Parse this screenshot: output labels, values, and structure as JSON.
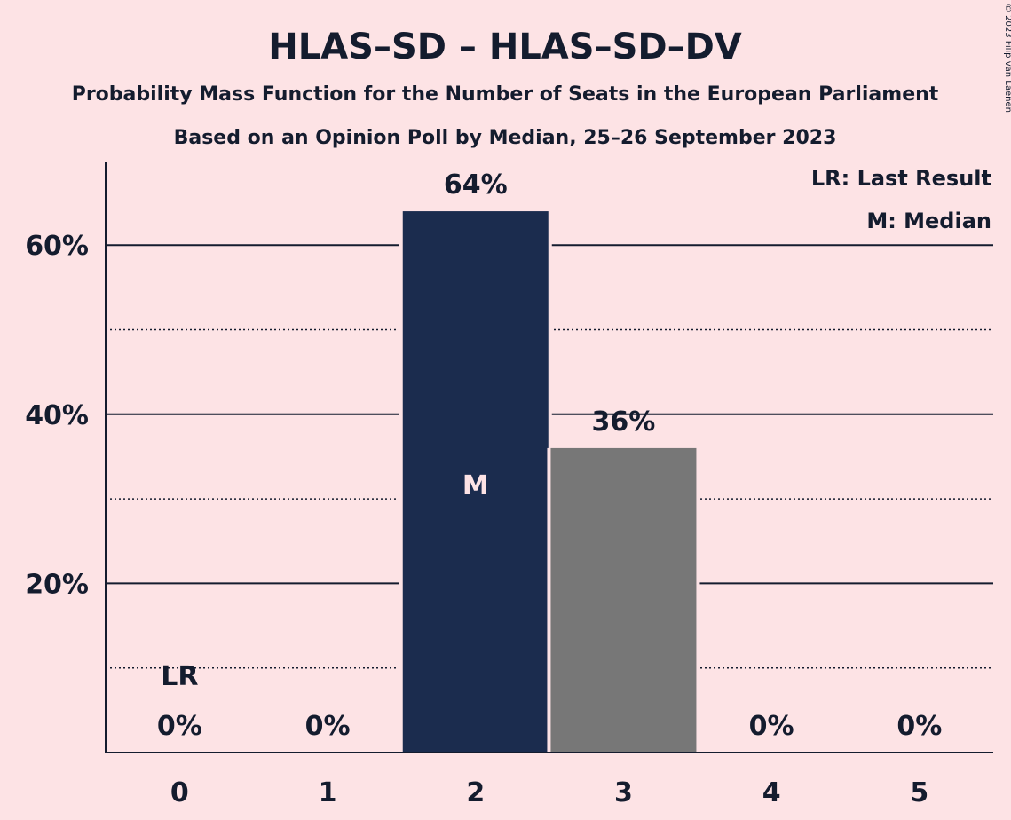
{
  "header": {
    "title": "HLAS–SD – HLAS–SD–DV",
    "subtitle": "Probability Mass Function for the Number of Seats in the European Parliament",
    "poll_line": "Based on an Opinion Poll by Median, 25–26 September 2023",
    "copyright": "© 2023 Filip van Laenen"
  },
  "legend": {
    "last_result": "LR: Last Result",
    "median": "M: Median"
  },
  "chart_data": {
    "type": "bar",
    "title": "HLAS–SD – HLAS–SD–DV",
    "categories": [
      "0",
      "1",
      "2",
      "3",
      "4",
      "5"
    ],
    "values": [
      0,
      0,
      64,
      36,
      0,
      0
    ],
    "value_labels": [
      "0%",
      "0%",
      "64%",
      "36%",
      "0%",
      "0%"
    ],
    "bar_colors": [
      "#1b2c4e",
      "#1b2c4e",
      "#1b2c4e",
      "#777777",
      "#1b2c4e",
      "#1b2c4e"
    ],
    "y_ticks": [
      20,
      40,
      60
    ],
    "y_tick_labels": [
      "20%",
      "40%",
      "60%"
    ],
    "y_minor_ticks": [
      10,
      30,
      50
    ],
    "ylim": [
      0,
      70
    ],
    "grid": true,
    "last_result_category": "0",
    "last_result_label": "LR",
    "median_category": "2",
    "median_label": "M",
    "legend_placement": "top-right"
  },
  "colors": {
    "background": "#fde3e5",
    "primary_bar": "#1b2c4e",
    "secondary_bar": "#777777",
    "text": "#141c2e"
  }
}
